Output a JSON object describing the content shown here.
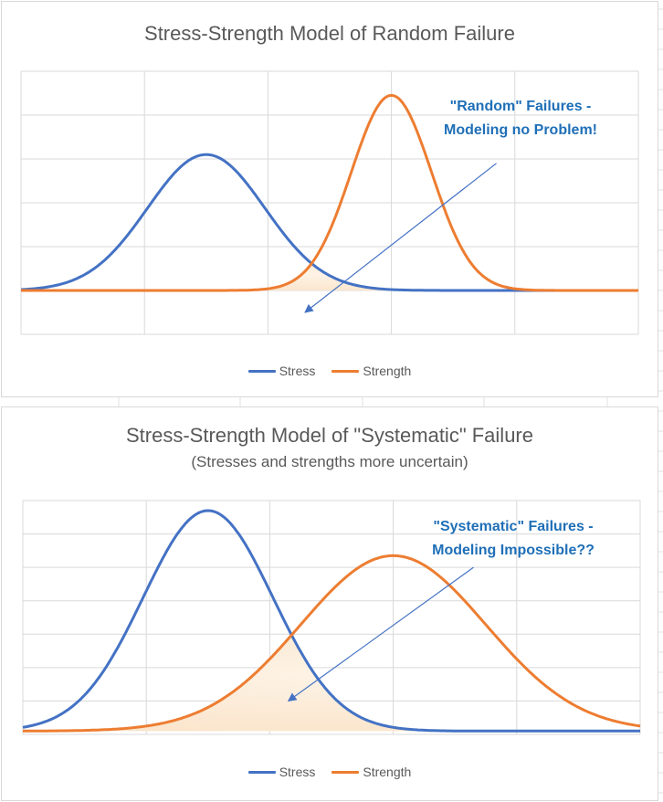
{
  "colors": {
    "stress": "#4472c4",
    "strength": "#ed7d31",
    "overlap_fill": "#fbe5cc",
    "gridline": "#d9d9d9",
    "annotation_text": "#1f6fb7",
    "arrow": "#4472c4"
  },
  "chart_data": [
    {
      "type": "line",
      "title": "Stress-Strength Model of Random Failure",
      "xlabel": "",
      "ylabel": "",
      "grid": true,
      "legend_position": "bottom",
      "xlim": [
        0,
        10
      ],
      "ylim": [
        0,
        6
      ],
      "series": [
        {
          "name": "Stress",
          "distribution": "normal",
          "mean": 3.0,
          "sd": 0.95,
          "peak": 4.1
        },
        {
          "name": "Strength",
          "distribution": "normal",
          "mean": 6.0,
          "sd": 0.65,
          "peak": 5.45
        }
      ],
      "overlap_region": "shaded",
      "annotation": {
        "lines": [
          "\"Random\" Failures -",
          "Modeling no Problem!"
        ],
        "arrow_from": [
          7.7,
          3.9
        ],
        "arrow_to": [
          4.6,
          0.5
        ]
      }
    },
    {
      "type": "line",
      "title": "Stress-Strength Model of \"Systematic\" Failure",
      "subtitle": "(Stresses and strengths more uncertain)",
      "xlabel": "",
      "ylabel": "",
      "grid": true,
      "legend_position": "bottom",
      "xlim": [
        0,
        10
      ],
      "ylim": [
        0,
        7
      ],
      "series": [
        {
          "name": "Stress",
          "distribution": "normal",
          "mean": 3.0,
          "sd": 1.05,
          "peak": 6.7
        },
        {
          "name": "Strength",
          "distribution": "normal",
          "mean": 6.0,
          "sd": 1.5,
          "peak": 5.35
        }
      ],
      "overlap_region": "shaded",
      "annotation": {
        "lines": [
          "\"Systematic\" Failures -",
          "Modeling Impossible??"
        ],
        "arrow_from": [
          7.3,
          5.0
        ],
        "arrow_to": [
          4.3,
          1.0
        ]
      }
    }
  ]
}
